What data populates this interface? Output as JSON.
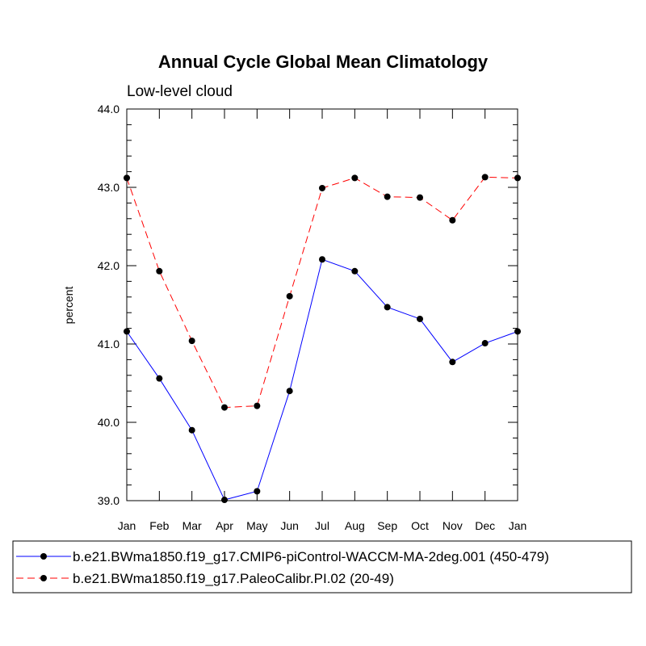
{
  "chart_data": {
    "type": "line",
    "title": "Annual Cycle Global Mean Climatology",
    "subtitle": "Low-level cloud",
    "ylabel": "percent",
    "xlabel": "",
    "ylim": [
      39.0,
      44.0
    ],
    "ytick_labels": [
      "39.0",
      "40.0",
      "41.0",
      "42.0",
      "43.0",
      "44.0"
    ],
    "categories": [
      "Jan",
      "Feb",
      "Mar",
      "Apr",
      "May",
      "Jun",
      "Jul",
      "Aug",
      "Sep",
      "Oct",
      "Nov",
      "Dec",
      "Jan"
    ],
    "grid": false,
    "legend_position": "bottom",
    "series": [
      {
        "name": "b.e21.BWma1850.f19_g17.CMIP6-piControl-WACCM-MA-2deg.001 (450-479)",
        "color": "#0000ff",
        "dash": "solid",
        "values": [
          41.16,
          40.56,
          39.9,
          39.01,
          39.12,
          40.4,
          42.08,
          41.93,
          41.47,
          41.32,
          40.77,
          41.01,
          41.16
        ]
      },
      {
        "name": "b.e21.BWma1850.f19_g17.PaleoCalibr.PI.02 (20-49)",
        "color": "#ff0000",
        "dash": "dashed",
        "values": [
          43.12,
          41.93,
          41.04,
          40.19,
          40.21,
          41.61,
          42.99,
          43.12,
          42.88,
          42.87,
          42.58,
          43.13,
          43.12
        ]
      }
    ]
  }
}
